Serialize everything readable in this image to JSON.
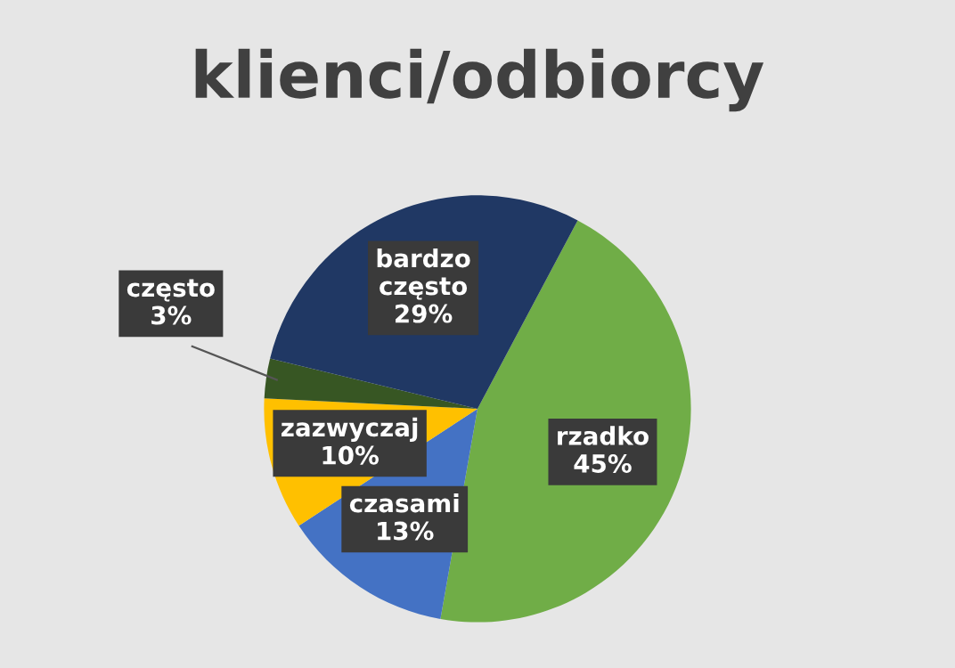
{
  "chart_data": {
    "type": "pie",
    "title": "klienci/odbiorcy",
    "categories": [
      "rzadko",
      "czasami",
      "zazwyczaj",
      "często",
      "bardzo\nczęsto"
    ],
    "values": [
      45,
      13,
      10,
      3,
      29
    ],
    "colors": [
      "#70ad47",
      "#4472c4",
      "#ffc000",
      "#375623",
      "#203864"
    ],
    "value_labels": [
      "45%",
      "13%",
      "10%",
      "3%",
      "29%"
    ],
    "legend": false
  }
}
